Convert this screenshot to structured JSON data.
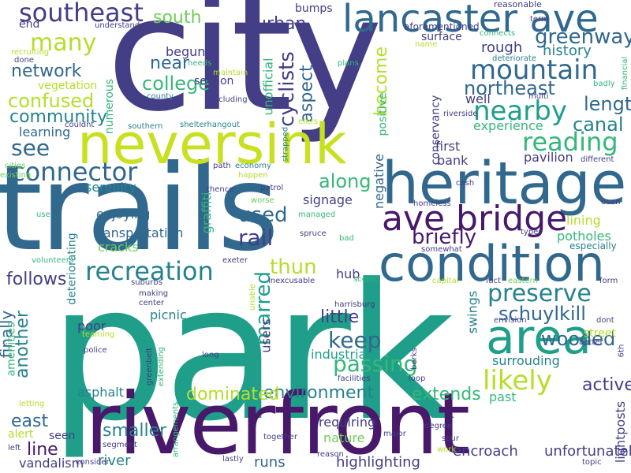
{
  "palette": {
    "navy": "#433e85",
    "purple": "#48186a",
    "darkblue": "#31688e",
    "teal": "#26828e",
    "green": "#1f9e89",
    "lightgreen": "#35b779",
    "lime": "#6ece58",
    "yellow": "#b5de2b",
    "yellowbright": "#c8e020"
  },
  "words": [
    {
      "text": "park",
      "color": "#1f9e89"
    },
    {
      "text": "city",
      "color": "#433e85"
    },
    {
      "text": "trails",
      "color": "#31688e"
    },
    {
      "text": "riverfront",
      "color": "#48186a"
    },
    {
      "text": "neversink",
      "color": "#c8e020"
    },
    {
      "text": "heritage",
      "color": "#31688e"
    },
    {
      "text": "lancaster ave",
      "color": "#31688e"
    },
    {
      "text": "condition",
      "color": "#31688e"
    },
    {
      "text": "area",
      "color": "#1f9e89"
    },
    {
      "text": "ave bridge",
      "color": "#48186a"
    },
    {
      "text": "southeast",
      "color": "#433e85"
    },
    {
      "text": "connector",
      "color": "#31688e"
    },
    {
      "text": "mountain",
      "color": "#31688e"
    },
    {
      "text": "nearby",
      "color": "#1f9e89"
    },
    {
      "text": "recreation",
      "color": "#26828e"
    },
    {
      "text": "reading",
      "color": "#35b779"
    },
    {
      "text": "preserve",
      "color": "#26828e"
    },
    {
      "text": "likely",
      "color": "#b5de2b"
    },
    {
      "text": "many",
      "color": "#b5de2b"
    },
    {
      "text": "greenway",
      "color": "#31688e"
    },
    {
      "text": "community",
      "color": "#26828e"
    },
    {
      "text": "college",
      "color": "#35b779"
    },
    {
      "text": "confused",
      "color": "#b5de2b"
    },
    {
      "text": "network",
      "color": "#31688e"
    },
    {
      "text": "canal",
      "color": "#26828e"
    },
    {
      "text": "length",
      "color": "#31688e"
    },
    {
      "text": "northeast",
      "color": "#31688e"
    },
    {
      "text": "schuylkill",
      "color": "#31688e"
    },
    {
      "text": "keep",
      "color": "#31688e"
    },
    {
      "text": "passing",
      "color": "#35b779"
    },
    {
      "text": "wooded",
      "color": "#31688e"
    },
    {
      "text": "along",
      "color": "#35b779"
    },
    {
      "text": "thun",
      "color": "#b5de2b"
    },
    {
      "text": "briefly",
      "color": "#48186a"
    },
    {
      "text": "rail",
      "color": "#433e85"
    },
    {
      "text": "used",
      "color": "#31688e"
    },
    {
      "text": "see",
      "color": "#31688e"
    },
    {
      "text": "south",
      "color": "#6ece58"
    },
    {
      "text": "urban",
      "color": "#433e85"
    },
    {
      "text": "near",
      "color": "#31688e"
    },
    {
      "text": "rough",
      "color": "#433e85"
    },
    {
      "text": "history",
      "color": "#26828e"
    },
    {
      "text": "little",
      "color": "#433e85"
    },
    {
      "text": "follows",
      "color": "#1f9e89"
    },
    {
      "text": "environment",
      "color": "#26828e"
    },
    {
      "text": "dominated",
      "color": "#31688e"
    },
    {
      "text": "extends",
      "color": "#26828e"
    },
    {
      "text": "active",
      "color": "#b5de2b"
    },
    {
      "text": "smaller",
      "color": "#35b779"
    },
    {
      "text": "line",
      "color": "#433e85"
    },
    {
      "text": "east",
      "color": "#26828e"
    },
    {
      "text": "river",
      "color": "#48186a"
    },
    {
      "text": "runs",
      "color": "#31688e"
    },
    {
      "text": "highlighting",
      "color": "#26828e"
    },
    {
      "text": "encroach",
      "color": "#31688e"
    },
    {
      "text": "unfortunately",
      "color": "#433e85"
    },
    {
      "text": "vandalism",
      "color": "#433e85"
    },
    {
      "text": "marred",
      "color": "#433e85"
    },
    {
      "text": "another",
      "color": "#433e85"
    },
    {
      "text": "finally",
      "color": "#6ece58"
    },
    {
      "text": "aspect",
      "color": "#433e85"
    },
    {
      "text": "cyclists",
      "color": "#26828e"
    },
    {
      "text": "become",
      "color": "#1f9e89"
    },
    {
      "text": "nature",
      "color": "#26828e"
    },
    {
      "text": "requiring",
      "color": "#35b779"
    },
    {
      "text": "asphalt",
      "color": "#433e85"
    },
    {
      "text": "industrial",
      "color": "#433e85"
    },
    {
      "text": "surrouding",
      "color": "#26828e"
    },
    {
      "text": "past",
      "color": "#433e85"
    },
    {
      "text": "hub",
      "color": "#31688e"
    },
    {
      "text": "users",
      "color": "#6ece58"
    },
    {
      "text": "picnic",
      "color": "#31688e"
    },
    {
      "text": "poor",
      "color": "#433e85"
    },
    {
      "text": "transportation",
      "color": "#26828e"
    },
    {
      "text": "cracks",
      "color": "#31688e"
    },
    {
      "text": "enjoying",
      "color": "#433e85"
    },
    {
      "text": "signage",
      "color": "#433e85"
    },
    {
      "text": "serenity",
      "color": "#433e85"
    },
    {
      "text": "learning",
      "color": "#35b779"
    },
    {
      "text": "first",
      "color": "#433e85"
    },
    {
      "text": "bank",
      "color": "#b5de2b"
    },
    {
      "text": "pavilion",
      "color": "#31688e"
    },
    {
      "text": "experience",
      "color": "#35b779"
    },
    {
      "text": "well",
      "color": "#433e85"
    },
    {
      "text": "negative",
      "color": "#b5de2b"
    },
    {
      "text": "positive",
      "color": "#35b779"
    },
    {
      "text": "conservancy",
      "color": "#26828e"
    },
    {
      "text": "lining",
      "color": "#b5de2b"
    },
    {
      "text": "potholes",
      "color": "#26828e"
    },
    {
      "text": "especially",
      "color": "#433e85"
    },
    {
      "text": "street",
      "color": "#31688e"
    },
    {
      "text": "swings",
      "color": "#433e85"
    },
    {
      "text": "lightposts",
      "color": "#35b779"
    },
    {
      "text": "unofficial",
      "color": "#433e85"
    },
    {
      "text": "begun",
      "color": "#433e85"
    },
    {
      "text": "section",
      "color": "#433e85"
    },
    {
      "text": "bumps",
      "color": "#433e85"
    },
    {
      "text": "surface",
      "color": "#b5de2b"
    },
    {
      "text": "vegetation",
      "color": "#35b779"
    },
    {
      "text": "numerous",
      "color": "#433e85"
    },
    {
      "text": "end",
      "color": "#433e85"
    },
    {
      "text": "graffiti",
      "color": "#35b779"
    },
    {
      "text": "deteriorating",
      "color": "#26828e"
    },
    {
      "text": "amenities",
      "color": "#35b779"
    },
    {
      "text": "alert",
      "color": "#b5de2b"
    },
    {
      "text": "seen",
      "color": "#433e85"
    },
    {
      "text": "understand",
      "color": "#433e85"
    },
    {
      "text": "reasonable",
      "color": "#433e85"
    },
    {
      "text": "aforementioned",
      "color": "#433e85"
    },
    {
      "text": "connects",
      "color": "#35b779"
    },
    {
      "text": "term",
      "color": "#433e85"
    },
    {
      "text": "name",
      "color": "#b5de2b"
    },
    {
      "text": "deteriorate",
      "color": "#26828e"
    },
    {
      "text": "plans",
      "color": "#35b779"
    },
    {
      "text": "badly",
      "color": "#35b779"
    },
    {
      "text": "multi",
      "color": "#433e85"
    },
    {
      "text": "financial",
      "color": "#35b779"
    },
    {
      "text": "recruiting",
      "color": "#b5de2b"
    },
    {
      "text": "done",
      "color": "#433e85"
    },
    {
      "text": "needs",
      "color": "#35b779"
    },
    {
      "text": "maintain",
      "color": "#b5de2b"
    },
    {
      "text": "county",
      "color": "#26828e"
    },
    {
      "text": "including",
      "color": "#433e85"
    },
    {
      "text": "couldnt",
      "color": "#433e85"
    },
    {
      "text": "southern",
      "color": "#26828e"
    },
    {
      "text": "shelterhangout",
      "color": "#26828e"
    },
    {
      "text": "efers",
      "color": "#b5de2b"
    },
    {
      "text": "strapped",
      "color": "#26828e"
    },
    {
      "text": "riverside",
      "color": "#433e85"
    },
    {
      "text": "different",
      "color": "#433e85"
    },
    {
      "text": "cities",
      "color": "#6ece58"
    },
    {
      "text": "existing",
      "color": "#6ece58"
    },
    {
      "text": "path",
      "color": "#433e85"
    },
    {
      "text": "economy",
      "color": "#26828e"
    },
    {
      "text": "happen",
      "color": "#b5de2b"
    },
    {
      "text": "thence",
      "color": "#433e85"
    },
    {
      "text": "patrol",
      "color": "#433e85"
    },
    {
      "text": "worse",
      "color": "#6ece58"
    },
    {
      "text": "cash",
      "color": "#433e85"
    },
    {
      "text": "homeless",
      "color": "#433e85"
    },
    {
      "text": "even",
      "color": "#433e85"
    },
    {
      "text": "use",
      "color": "#35b779"
    },
    {
      "text": "managed",
      "color": "#35b779"
    },
    {
      "text": "spruce",
      "color": "#433e85"
    },
    {
      "text": "bad",
      "color": "#35b779"
    },
    {
      "text": "types",
      "color": "#433e85"
    },
    {
      "text": "volunteers",
      "color": "#35b779"
    },
    {
      "text": "exeter",
      "color": "#433e85"
    },
    {
      "text": "somewhat",
      "color": "#433e85"
    },
    {
      "text": "suburbs",
      "color": "#433e85"
    },
    {
      "text": "inexcusable",
      "color": "#433e85"
    },
    {
      "text": "scenic",
      "color": "#35b779"
    },
    {
      "text": "fact",
      "color": "#433e85"
    },
    {
      "text": "eastern",
      "color": "#6ece58"
    },
    {
      "text": "form",
      "color": "#433e85"
    },
    {
      "text": "capital",
      "color": "#b5de2b"
    },
    {
      "text": "making",
      "color": "#433e85"
    },
    {
      "text": "center",
      "color": "#433e85"
    },
    {
      "text": "unable",
      "color": "#b5de2b"
    },
    {
      "text": "harrisburg",
      "color": "#433e85"
    },
    {
      "text": "envision",
      "color": "#433e85"
    },
    {
      "text": "dont",
      "color": "#433e85"
    },
    {
      "text": "better",
      "color": "#433e85"
    },
    {
      "text": "6th",
      "color": "#433e85"
    },
    {
      "text": "teaming",
      "color": "#b5de2b"
    },
    {
      "text": "police",
      "color": "#433e85"
    },
    {
      "text": "greenbelt",
      "color": "#433e85"
    },
    {
      "text": "extending",
      "color": "#35b779"
    },
    {
      "text": "long",
      "color": "#433e85"
    },
    {
      "text": "facilities",
      "color": "#433e85"
    },
    {
      "text": "berks",
      "color": "#433e85"
    },
    {
      "text": "loop",
      "color": "#433e85"
    },
    {
      "text": "letting",
      "color": "#b5de2b"
    },
    {
      "text": "arrangements",
      "color": "#35b779"
    },
    {
      "text": "together",
      "color": "#433e85"
    },
    {
      "text": "degree",
      "color": "#433e85"
    },
    {
      "text": "major",
      "color": "#433e85"
    },
    {
      "text": "spur",
      "color": "#433e85"
    },
    {
      "text": "work",
      "color": "#b5de2b"
    },
    {
      "text": "left",
      "color": "#433e85"
    },
    {
      "text": "consider",
      "color": "#433e85"
    },
    {
      "text": "segment",
      "color": "#433e85"
    },
    {
      "text": "lastly",
      "color": "#433e85"
    },
    {
      "text": "reason",
      "color": "#433e85"
    },
    {
      "text": "topic",
      "color": "#433e85"
    }
  ]
}
